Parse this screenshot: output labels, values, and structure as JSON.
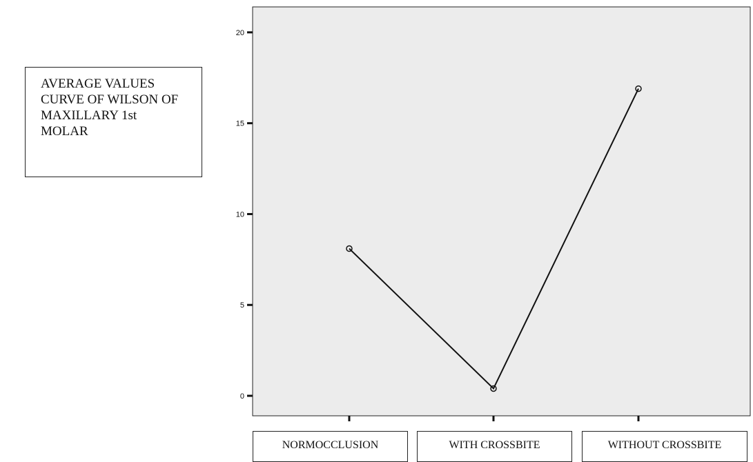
{
  "chart_data": {
    "type": "line",
    "title": "AVERAGE VALUES\nCURVE OF WILSON OF\nMAXILLARY 1st\nMOLAR",
    "categories": [
      "NORMOCCLUSION",
      "WITH CROSSBITE",
      "WITHOUT CROSSBITE"
    ],
    "values": [
      8.1,
      0.4,
      16.9
    ],
    "yticks": [
      0,
      5,
      10,
      15,
      20
    ],
    "ylim": [
      -1.1,
      21.4
    ],
    "xlabel": "",
    "ylabel": "",
    "grid": false,
    "colors": {
      "plot_background": "#ececec",
      "line": "#111111",
      "marker": "#111111"
    }
  }
}
